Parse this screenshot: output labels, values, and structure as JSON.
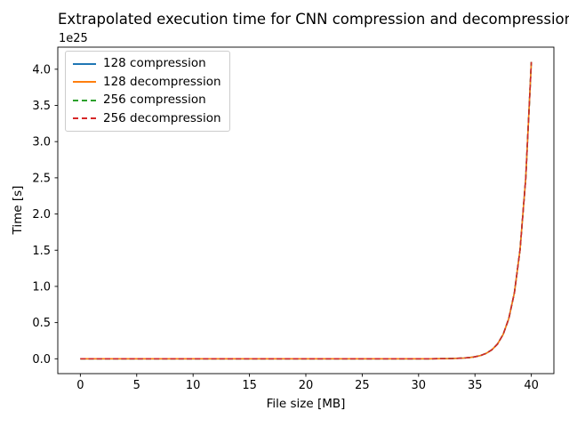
{
  "figure": {
    "offset_label": "1e25"
  },
  "chart_data": {
    "type": "line",
    "title": "Extrapolated execution time for CNN compression and decompression",
    "xlabel": "File size [MB]",
    "ylabel": "Time [s]",
    "y_offset_factor": "1e25",
    "grid": false,
    "legend_position": "upper left",
    "xlim": [
      -2,
      42
    ],
    "ylim_1e25": [
      -0.205,
      4.305
    ],
    "x_ticks": [
      0,
      5,
      10,
      15,
      20,
      25,
      30,
      35,
      40
    ],
    "y_ticks": [
      0.0,
      0.5,
      1.0,
      1.5,
      2.0,
      2.5,
      3.0,
      3.5,
      4.0
    ],
    "x": [
      0,
      5,
      10,
      15,
      20,
      25,
      28,
      29,
      30,
      31,
      32,
      33,
      34,
      34.5,
      35,
      35.5,
      36,
      36.5,
      37,
      37.5,
      38,
      38.5,
      39,
      39.5,
      40
    ],
    "series": [
      {
        "name": "128 compression",
        "color": "#1f77b4",
        "style": "solid",
        "values_1e25": [
          0,
          0,
          0,
          0,
          8.4e-09,
          5.7e-07,
          2.52e-05,
          6.85e-05,
          0.0001861,
          0.000506,
          0.001375,
          0.003739,
          0.01016,
          0.01676,
          0.02763,
          0.04555,
          0.07509,
          0.12381,
          0.20413,
          0.33655,
          0.55487,
          0.91483,
          1.50831,
          2.48678,
          4.1
        ]
      },
      {
        "name": "128 decompression",
        "color": "#ff7f0e",
        "style": "solid",
        "values_1e25": [
          0,
          0,
          0,
          0,
          8.4e-09,
          5.7e-07,
          2.52e-05,
          6.85e-05,
          0.0001861,
          0.000506,
          0.001375,
          0.003739,
          0.01016,
          0.01676,
          0.02763,
          0.04555,
          0.07509,
          0.12381,
          0.20413,
          0.33655,
          0.55487,
          0.91483,
          1.50831,
          2.48678,
          4.1
        ]
      },
      {
        "name": "256 compression",
        "color": "#2ca02c",
        "style": "dashed",
        "values_1e25": [
          0,
          0,
          0,
          0,
          8.4e-09,
          5.7e-07,
          2.52e-05,
          6.85e-05,
          0.0001861,
          0.000506,
          0.001375,
          0.003739,
          0.01016,
          0.01676,
          0.02763,
          0.04555,
          0.07509,
          0.12381,
          0.20413,
          0.33655,
          0.55487,
          0.91483,
          1.50831,
          2.48678,
          4.1
        ]
      },
      {
        "name": "256 decompression",
        "color": "#d62728",
        "style": "dashed",
        "values_1e25": [
          0,
          0,
          0,
          0,
          8.4e-09,
          5.7e-07,
          2.52e-05,
          6.85e-05,
          0.0001861,
          0.000506,
          0.001375,
          0.003739,
          0.01016,
          0.01676,
          0.02763,
          0.04555,
          0.07509,
          0.12381,
          0.20413,
          0.33655,
          0.55487,
          0.91483,
          1.50831,
          2.48678,
          4.1
        ]
      }
    ]
  }
}
